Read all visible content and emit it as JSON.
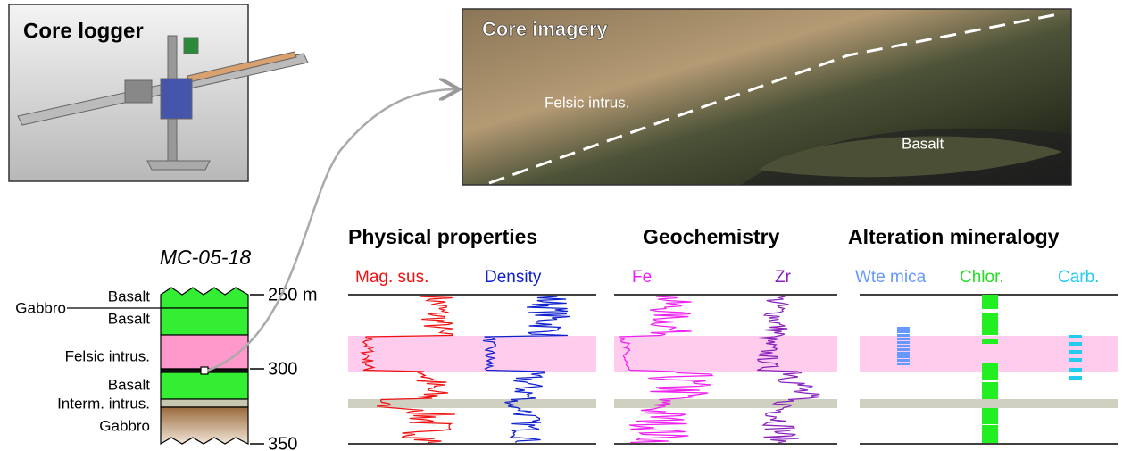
{
  "core_logger": {
    "title": "Core logger"
  },
  "core_imagery": {
    "title": "Core imagery",
    "labels": [
      "Felsic intrus.",
      "Basalt"
    ]
  },
  "strat_column": {
    "title": "MC-05-18",
    "units": [
      "Basalt",
      "Gabbro",
      "Basalt",
      "Felsic intrus.",
      "Basalt",
      "Interm. intrus.",
      "Gabbro"
    ],
    "depths": [
      "250 m",
      "300",
      "350"
    ]
  },
  "groups": [
    {
      "title": "Physical properties",
      "tracks": [
        "Mag. sus.",
        "Density"
      ]
    },
    {
      "title": "Geochemistry",
      "tracks": [
        "Fe",
        "Zr"
      ]
    },
    {
      "title": "Alteration mineralogy",
      "tracks": [
        "Wte mica",
        "Chlor.",
        "Carb."
      ]
    }
  ]
}
